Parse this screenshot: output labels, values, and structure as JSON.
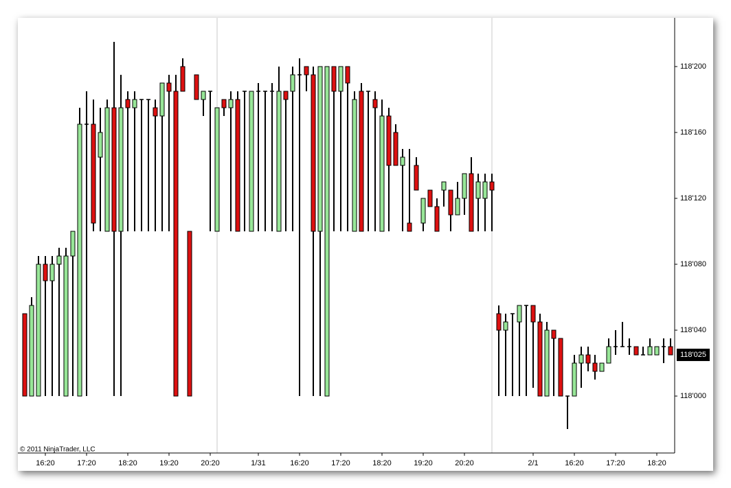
{
  "chart_data": {
    "type": "candlestick",
    "credit": "© 2011 NinjaTrader, LLC",
    "up_color": "#98e698",
    "down_color": "#dd1111",
    "categories": [
      null,
      null,
      null,
      "16:20",
      null,
      null,
      null,
      null,
      null,
      "17:20",
      null,
      null,
      null,
      null,
      null,
      "18:20",
      null,
      null,
      null,
      null,
      null,
      "19:20",
      null,
      null,
      null,
      null,
      null,
      "20:20",
      null,
      null,
      null,
      null,
      null,
      null,
      "1/31",
      null,
      null,
      null,
      null,
      null,
      "16:20",
      null,
      null,
      null,
      null,
      null,
      "17:20",
      null,
      null,
      null,
      null,
      null,
      "18:20",
      null,
      null,
      null,
      null,
      null,
      "19:20",
      null,
      null,
      null,
      null,
      null,
      "20:20",
      null,
      null,
      null,
      null,
      null,
      null,
      null,
      null,
      null,
      "2/1",
      null,
      null,
      null,
      null,
      null,
      "16:20",
      null,
      null,
      null,
      null,
      null,
      "17:20",
      null,
      null,
      null,
      null,
      null,
      "18:20",
      null,
      null
    ],
    "open": [
      118.15625,
      118,
      118,
      118.25,
      118.21875,
      118.25,
      118,
      118.265625,
      118,
      118.515625,
      118.515625,
      118.453125,
      118.3125,
      118.546875,
      118.3125,
      118.5625,
      118.546875,
      118.5625,
      118.5625,
      118.546875,
      118.53125,
      118.59375,
      118.578125,
      118.625,
      118.3125,
      118.609375,
      118.5625,
      118.578125,
      118.3125,
      118.5625,
      118.546875,
      118.5625,
      118.578125,
      118.3125,
      118.578125,
      118.578125,
      118.578125,
      118.3125,
      118.578125,
      118.578125,
      118.609375,
      118.625,
      118.609375,
      118.3125,
      118,
      118.625,
      118.578125,
      118.625,
      118.3125,
      118.578125,
      118.578125,
      118.5625,
      118.3125,
      118.53125,
      118.5,
      118.4375,
      118.328125,
      118.4375,
      118.328125,
      118.390625,
      118.359375,
      118.390625,
      118.390625,
      118.34375,
      118.375,
      118.421875,
      118.375,
      118.375,
      118.40625,
      118.15625,
      118.125,
      118.15625,
      118.140625,
      118.171875,
      118.171875,
      118.140625,
      118,
      118.125,
      118.109375,
      118,
      118,
      118.0625,
      118.078125,
      118.0625,
      118.046875,
      118.0625,
      118.09375,
      118.09375,
      118.09375,
      118.09375,
      118.078125,
      118.078125,
      118.078125,
      118.09375,
      118.09375
    ],
    "high": [
      118.15625,
      118.1875,
      118.265625,
      118.265625,
      118.265625,
      118.28125,
      118.28125,
      118.3125,
      118.546875,
      118.578125,
      118.5625,
      118.546875,
      118.5625,
      118.671875,
      118.609375,
      118.578125,
      118.578125,
      118.5625,
      118.5625,
      118.5625,
      118.59375,
      118.609375,
      118.609375,
      118.640625,
      118.3125,
      118.609375,
      118.578125,
      118.578125,
      118.546875,
      118.5625,
      118.578125,
      118.578125,
      118.578125,
      118.578125,
      118.59375,
      118.578125,
      118.59375,
      118.625,
      118.578125,
      118.625,
      118.640625,
      118.625,
      118.625,
      118.625,
      118.625,
      118.625,
      118.625,
      118.625,
      118.578125,
      118.59375,
      118.578125,
      118.578125,
      118.5625,
      118.546875,
      118.515625,
      118.46875,
      118.46875,
      118.453125,
      118.375,
      118.390625,
      118.375,
      118.40625,
      118.390625,
      118.40625,
      118.421875,
      118.453125,
      118.421875,
      118.421875,
      118.421875,
      118.171875,
      118.15625,
      118.15625,
      118.171875,
      118.171875,
      118.171875,
      118.15625,
      118.140625,
      118.125,
      118.109375,
      118,
      118.078125,
      118.09375,
      118.09375,
      118.078125,
      118.0625,
      118.109375,
      118.125,
      118.140625,
      118.109375,
      118.09375,
      118.09375,
      118.109375,
      118.09375,
      118.109375,
      118.109375
    ],
    "low": [
      118,
      118,
      118,
      118,
      118,
      118,
      118,
      118,
      118,
      118,
      118.3125,
      118.3125,
      118.3125,
      118,
      118,
      118.3125,
      118.3125,
      118.3125,
      118.3125,
      118.3125,
      118.3125,
      118.3125,
      118,
      118.578125,
      118,
      118.5625,
      118.53125,
      118.3125,
      118.3125,
      118.53125,
      118.3125,
      118.3125,
      118.3125,
      118.3125,
      118.3125,
      118.3125,
      118.3125,
      118.3125,
      118.3125,
      118.3125,
      118,
      118.578125,
      118,
      118,
      118,
      118.3125,
      118.3125,
      118.3125,
      118.3125,
      118.3125,
      118.3125,
      118.3125,
      118.3125,
      118.3125,
      118.4375,
      118.3125,
      118.3125,
      118.390625,
      118.3125,
      118.359375,
      118.3125,
      118.359375,
      118.3125,
      118.34375,
      118.34375,
      118.3125,
      118.3125,
      118.3125,
      118.3125,
      118,
      118,
      118,
      118,
      118,
      118.015625,
      118,
      118,
      118,
      118,
      117.9375,
      118,
      118.015625,
      118.046875,
      118.03125,
      118.046875,
      118.0625,
      118.078125,
      118.09375,
      118.078125,
      118.078125,
      118.078125,
      118.078125,
      118.078125,
      118.0625,
      118.078125
    ],
    "close": [
      118,
      118.171875,
      118.25,
      118.21875,
      118.25,
      118.265625,
      118.265625,
      118.3125,
      118.515625,
      118.515625,
      118.328125,
      118.5,
      118.546875,
      118.3125,
      118.546875,
      118.546875,
      118.5625,
      118.5625,
      118.5625,
      118.53125,
      118.59375,
      118.578125,
      118,
      118.578125,
      118,
      118.5625,
      118.578125,
      118.578125,
      118.546875,
      118.546875,
      118.5625,
      118.3125,
      118.578125,
      118.578125,
      118.578125,
      118.578125,
      118.578125,
      118.578125,
      118.5625,
      118.609375,
      118.609375,
      118.609375,
      118.3125,
      118.625,
      118.625,
      118.578125,
      118.625,
      118.59375,
      118.5625,
      118.3125,
      118.578125,
      118.546875,
      118.53125,
      118.4375,
      118.4375,
      118.453125,
      118.3125,
      118.390625,
      118.375,
      118.359375,
      118.3125,
      118.40625,
      118.34375,
      118.375,
      118.421875,
      118.3125,
      118.40625,
      118.40625,
      118.390625,
      118.125,
      118.140625,
      118.15625,
      118.171875,
      118.171875,
      118.140625,
      118,
      118.125,
      118.109375,
      118,
      118,
      118.0625,
      118.078125,
      118.0625,
      118.046875,
      118.0625,
      118.09375,
      118.09375,
      118.09375,
      118.09375,
      118.078125,
      118.078125,
      118.09375,
      118.09375,
      118.09375,
      118.078125
    ],
    "last_price": {
      "value": 118.078125,
      "label": "118'025"
    },
    "ylim": [
      117.892,
      118.7174
    ],
    "yticks": [
      {
        "value": 118,
        "label": "118'000"
      },
      {
        "value": 118.125,
        "label": "118'040"
      },
      {
        "value": 118.25,
        "label": "118'080"
      },
      {
        "value": 118.375,
        "label": "118'120"
      },
      {
        "value": 118.5,
        "label": "118'160"
      },
      {
        "value": 118.625,
        "label": "118'200"
      }
    ]
  }
}
